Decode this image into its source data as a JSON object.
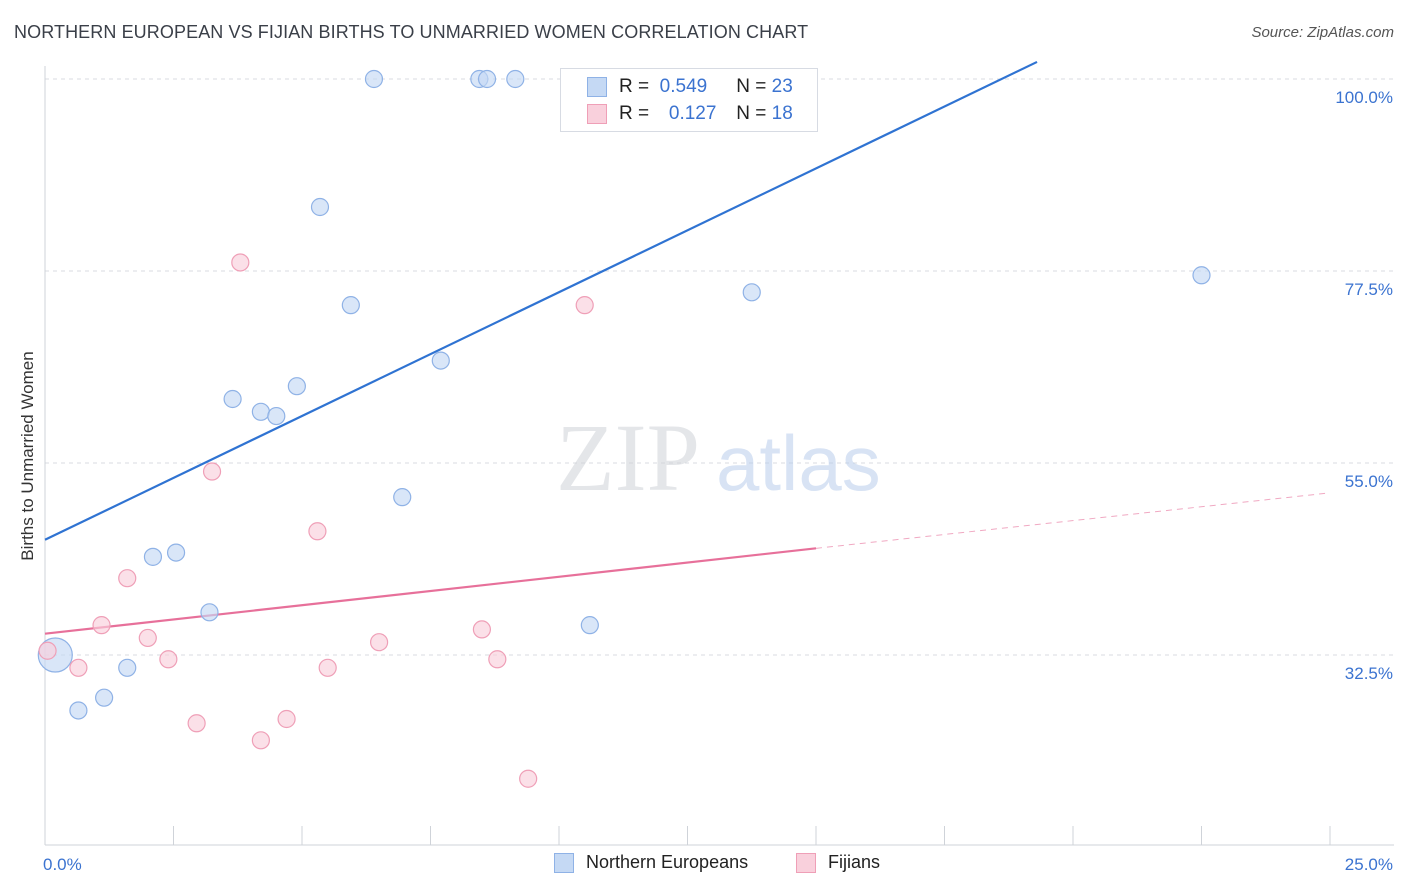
{
  "title": "NORTHERN EUROPEAN VS FIJIAN BIRTHS TO UNMARRIED WOMEN CORRELATION CHART",
  "source": "Source: ZipAtlas.com",
  "watermark": {
    "zip": "ZIP",
    "atlas": "atlas"
  },
  "legend": {
    "r_label": "R =",
    "n_label": "N =",
    "rows": [
      {
        "r": "0.549",
        "n": "23"
      },
      {
        "r": "0.127",
        "n": "18"
      }
    ]
  },
  "bottom_legend": [
    "Northern Europeans",
    "Fijians"
  ],
  "colors": {
    "blue_fill": "#c5d9f4",
    "blue_stroke": "#8fb2e6",
    "blue_line": "#2f73d2",
    "pink_fill": "#f9d0dc",
    "pink_stroke": "#ef9fb7",
    "pink_line": "#e7709a",
    "tick_text": "#3b73d0",
    "grid": "#d8dbe0"
  },
  "chart_data": {
    "type": "scatter",
    "title": "NORTHERN EUROPEAN VS FIJIAN BIRTHS TO UNMARRIED WOMEN CORRELATION CHART",
    "xlabel": "",
    "ylabel": "Births to Unmarried Women",
    "xlim": [
      0,
      25
    ],
    "ylim": [
      13,
      102
    ],
    "x_tick_labels": [
      "0.0%",
      "25.0%"
    ],
    "y_ticks": [
      100.0,
      77.5,
      55.0,
      32.5
    ],
    "y_tick_labels": [
      "100.0%",
      "77.5%",
      "55.0%",
      "32.5%"
    ],
    "grid": true,
    "legend_position": "top-center",
    "series": [
      {
        "name": "Northern Europeans",
        "color": "#8fb2e6",
        "points": [
          {
            "x": 0.2,
            "y": 32.5,
            "big": true
          },
          {
            "x": 0.65,
            "y": 26.0
          },
          {
            "x": 1.15,
            "y": 27.5
          },
          {
            "x": 1.6,
            "y": 31.0
          },
          {
            "x": 2.1,
            "y": 44.0
          },
          {
            "x": 2.55,
            "y": 44.5
          },
          {
            "x": 3.2,
            "y": 37.5
          },
          {
            "x": 3.65,
            "y": 62.5
          },
          {
            "x": 4.2,
            "y": 61.0
          },
          {
            "x": 4.5,
            "y": 60.5
          },
          {
            "x": 4.9,
            "y": 64.0
          },
          {
            "x": 5.35,
            "y": 85.0
          },
          {
            "x": 5.95,
            "y": 73.5
          },
          {
            "x": 6.4,
            "y": 102.0
          },
          {
            "x": 6.95,
            "y": 51.0
          },
          {
            "x": 7.7,
            "y": 67.0
          },
          {
            "x": 8.45,
            "y": 102.0
          },
          {
            "x": 8.6,
            "y": 102.0
          },
          {
            "x": 9.15,
            "y": 102.0
          },
          {
            "x": 10.3,
            "y": 102.0
          },
          {
            "x": 10.6,
            "y": 36.0
          },
          {
            "x": 13.75,
            "y": 75.0
          },
          {
            "x": 22.5,
            "y": 77.0
          }
        ],
        "trend": {
          "x0": 0,
          "y0": 46.0,
          "x1": 19.3,
          "y1": 102.0
        }
      },
      {
        "name": "Fijians",
        "color": "#ef9fb7",
        "points": [
          {
            "x": 0.05,
            "y": 33.0
          },
          {
            "x": 0.65,
            "y": 31.0
          },
          {
            "x": 1.1,
            "y": 36.0
          },
          {
            "x": 1.6,
            "y": 41.5
          },
          {
            "x": 2.0,
            "y": 34.5
          },
          {
            "x": 2.4,
            "y": 32.0
          },
          {
            "x": 2.95,
            "y": 24.5
          },
          {
            "x": 3.25,
            "y": 54.0
          },
          {
            "x": 3.8,
            "y": 78.5
          },
          {
            "x": 4.2,
            "y": 22.5
          },
          {
            "x": 4.7,
            "y": 25.0
          },
          {
            "x": 5.3,
            "y": 47.0
          },
          {
            "x": 5.5,
            "y": 31.0
          },
          {
            "x": 6.5,
            "y": 34.0
          },
          {
            "x": 8.5,
            "y": 35.5
          },
          {
            "x": 8.8,
            "y": 32.0
          },
          {
            "x": 9.4,
            "y": 18.0
          },
          {
            "x": 10.5,
            "y": 73.5
          }
        ],
        "trend": {
          "x0": 0,
          "y0": 35.0,
          "x1": 15.0,
          "y1": 45.0,
          "dash_to_x": 25.0,
          "dash_to_y": 51.5
        }
      }
    ]
  }
}
